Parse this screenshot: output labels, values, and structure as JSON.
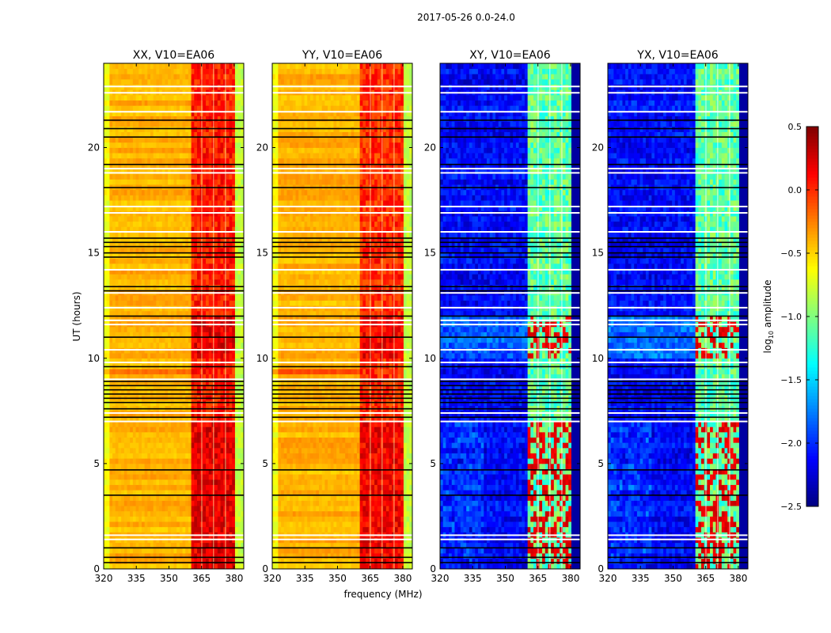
{
  "chart_data": {
    "type": "heatmap",
    "title": "2017-05-26 0.0-24.0",
    "xlabel": "frequency (MHz)",
    "ylabel": "UT (hours)",
    "xlim": [
      320,
      384.4
    ],
    "ylim": [
      0,
      24
    ],
    "xticks": [
      "320",
      "335",
      "350",
      "365",
      "380"
    ],
    "xtick_values": [
      320,
      335,
      350,
      365,
      380
    ],
    "yticks": [
      "0",
      "5",
      "10",
      "15",
      "20"
    ],
    "ytick_values": [
      0,
      5,
      10,
      15,
      20
    ],
    "colorbar": {
      "label": "log10 amplitude",
      "label_main": "log",
      "label_sub": "10",
      "label_rest": " amplitude",
      "colormap": "jet",
      "range": [
        -2.5,
        0.5
      ],
      "ticks": [
        "0.5",
        "0.0",
        "−0.5",
        "−1.0",
        "−1.5",
        "−2.0",
        "−2.5"
      ],
      "tick_values": [
        0.5,
        0.0,
        -0.5,
        -1.0,
        -1.5,
        -2.0,
        -2.5
      ]
    },
    "band": {
      "start_mhz": 360.7,
      "end_mhz": 380.4,
      "subband_gaps_mhz": [
        365.1,
        370.5,
        376.0
      ]
    },
    "flagged_hours_black": [
      0.3,
      0.55,
      1.0,
      3.5,
      4.7,
      7.2,
      7.6,
      7.9,
      8.1,
      8.3,
      8.5,
      8.7,
      8.9,
      9.6,
      11.0,
      12.0,
      13.2,
      13.4,
      14.8,
      15.0,
      15.3,
      15.5,
      15.7,
      18.1,
      19.2,
      20.5,
      20.9,
      21.3
    ],
    "flagged_hours_white": [
      1.4,
      1.6,
      7.0,
      7.4,
      9.0,
      9.8,
      10.4,
      11.6,
      11.8,
      12.4,
      13.1,
      14.2,
      16.0,
      16.9,
      17.2,
      18.8,
      19.0,
      21.7,
      22.6,
      22.9
    ],
    "panels": [
      {
        "title": "XX, V10=EA06",
        "kind": "parallel",
        "base_log_amp": -0.4,
        "band_log_amp": 0.05,
        "edge_log_amp": -0.9
      },
      {
        "title": "YY, V10=EA06",
        "kind": "parallel",
        "base_log_amp": -0.4,
        "band_log_amp": 0.0,
        "edge_log_amp": -0.9
      },
      {
        "title": "XY, V10=EA06",
        "kind": "cross",
        "base_log_amp": -2.2,
        "band_log_amp": -1.1,
        "edge_log_amp": -2.4
      },
      {
        "title": "YX, V10=EA06",
        "kind": "cross",
        "base_log_amp": -2.2,
        "band_log_amp": -1.1,
        "edge_log_amp": -2.4
      }
    ]
  }
}
